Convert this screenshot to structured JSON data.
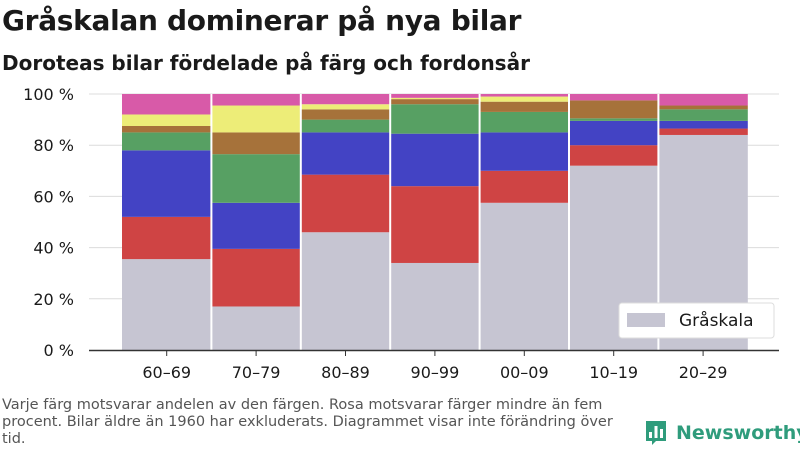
{
  "header": {
    "title": "Gråskalan dominerar på nya bilar",
    "subtitle": "Doroteas bilar fördelade på färg och fordonsår"
  },
  "footer": {
    "note": "Varje färg motsvarar andelen av den färgen. Rosa motsvarar färger mindre än fem procent. Bilar äldre än 1960 har exkluderats. Diagrammet visar inte förändring över tid.",
    "brand": "Newsworthy",
    "brand_icon": "bar-chart-logo-icon",
    "brand_color": "#2f9c7c"
  },
  "chart_data": {
    "type": "bar",
    "stacked": true,
    "categories": [
      "60–69",
      "70–79",
      "80–89",
      "90–99",
      "00–09",
      "10–19",
      "20–29"
    ],
    "series": [
      {
        "name": "Gråskala",
        "color": "#c6c5d2",
        "values": [
          35.5,
          17,
          46,
          34,
          57.5,
          72,
          84
        ]
      },
      {
        "color": "#cf4444",
        "values": [
          16.5,
          22.5,
          22.5,
          30,
          12.5,
          8,
          2.5
        ]
      },
      {
        "color": "#4343c4",
        "values": [
          26,
          18,
          16.5,
          20.5,
          15,
          9.5,
          3
        ]
      },
      {
        "color": "#57a063",
        "values": [
          7,
          19,
          5,
          11.5,
          8,
          1,
          4.5
        ]
      },
      {
        "color": "#a6723a",
        "values": [
          2.5,
          8.5,
          4,
          2,
          4,
          7,
          1.5
        ]
      },
      {
        "color": "#eded78",
        "values": [
          4.5,
          10.5,
          2,
          0.5,
          2,
          0,
          0
        ]
      },
      {
        "color": "#d85aa8",
        "values": [
          8,
          4.5,
          4,
          1.5,
          1,
          2.5,
          4.5
        ]
      }
    ],
    "ylim": [
      0,
      100
    ],
    "yticks": [
      0,
      20,
      40,
      60,
      80,
      100
    ],
    "ytick_labels": [
      "0 %",
      "20 %",
      "40 %",
      "60 %",
      "80 %",
      "100 %"
    ],
    "grid": "horizontal",
    "legend": {
      "placement": "bottom-right",
      "entries": [
        "Gråskala"
      ]
    }
  }
}
